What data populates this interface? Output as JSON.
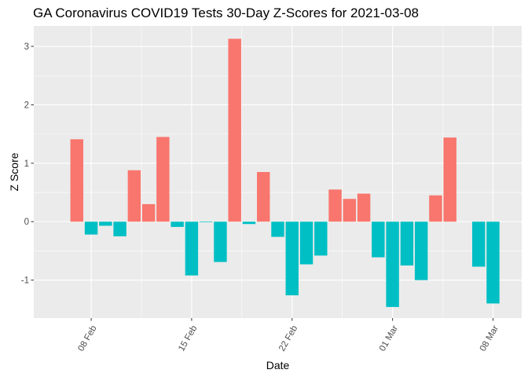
{
  "chart_data": {
    "type": "bar",
    "title": "GA Coronavirus COVID19 Tests 30-Day Z-Scores for 2021-03-08",
    "xlabel": "Date",
    "ylabel": "Z Score",
    "x_type": "date",
    "x_range": [
      "2021-02-04",
      "2021-03-10"
    ],
    "ylim": [
      -1.65,
      3.35
    ],
    "y_ticks": [
      -1,
      0,
      1,
      2,
      3
    ],
    "x_ticks": [
      {
        "date": "2021-02-08",
        "label": "08 Feb"
      },
      {
        "date": "2021-02-15",
        "label": "15 Feb"
      },
      {
        "date": "2021-02-22",
        "label": "22 Feb"
      },
      {
        "date": "2021-03-01",
        "label": "01 Mar"
      },
      {
        "date": "2021-03-08",
        "label": "08 Mar"
      }
    ],
    "grid": true,
    "legend": "none",
    "colors": {
      "positive": "#F8766D",
      "negative": "#00BFC4",
      "panel_background": "#EBEBEB",
      "grid": "#FFFFFF"
    },
    "dates": [
      "2021-02-07",
      "2021-02-08",
      "2021-02-09",
      "2021-02-10",
      "2021-02-11",
      "2021-02-12",
      "2021-02-13",
      "2021-02-14",
      "2021-02-15",
      "2021-02-16",
      "2021-02-17",
      "2021-02-18",
      "2021-02-19",
      "2021-02-20",
      "2021-02-21",
      "2021-02-22",
      "2021-02-23",
      "2021-02-24",
      "2021-02-25",
      "2021-02-26",
      "2021-02-27",
      "2021-02-28",
      "2021-03-01",
      "2021-03-02",
      "2021-03-03",
      "2021-03-04",
      "2021-03-05",
      "2021-03-06",
      "2021-03-07",
      "2021-03-08"
    ],
    "values": [
      1.41,
      -0.22,
      -0.07,
      -0.25,
      0.88,
      0.3,
      1.45,
      -0.09,
      -0.92,
      -0.01,
      -0.69,
      3.13,
      -0.04,
      0.85,
      -0.26,
      -1.26,
      -0.73,
      -0.58,
      0.55,
      0.39,
      0.48,
      -0.61,
      -1.46,
      -0.75,
      -1.0,
      0.45,
      1.44,
      0.0,
      -0.77,
      -1.4
    ]
  }
}
